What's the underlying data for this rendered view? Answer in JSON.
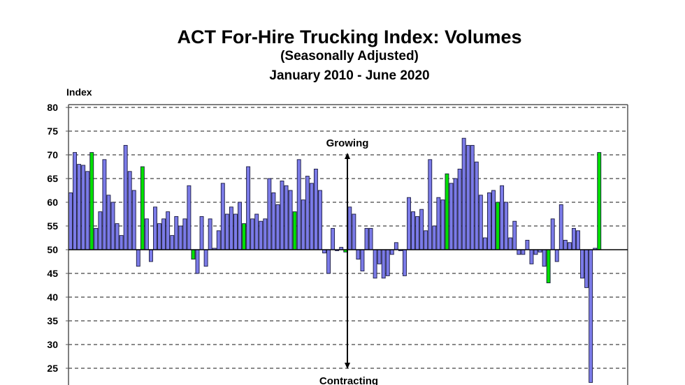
{
  "chart_data": {
    "type": "bar",
    "title": "ACT For-Hire Trucking Index: Volumes",
    "subtitle": "(Seasonally Adjusted)",
    "period": "January 2010 - June 2020",
    "ylabel": "Index",
    "xlabel": "",
    "ylim": [
      20,
      80
    ],
    "yticks": [
      25,
      30,
      35,
      40,
      45,
      50,
      55,
      60,
      65,
      70,
      75,
      80
    ],
    "baseline": 50,
    "grid": true,
    "annotations": {
      "up": "Growing",
      "down": "Contracting"
    },
    "colors": {
      "bar": "#7b7be8",
      "highlight": "#00e000",
      "outline": "#1a1a40"
    },
    "highlight_note_indices": [
      5,
      17,
      29,
      41,
      53,
      65,
      89,
      101,
      113,
      125
    ],
    "start": "2010-01",
    "end": "2020-06",
    "values": [
      62,
      70.5,
      68,
      67.8,
      66.5,
      70.5,
      54.5,
      58,
      69,
      61.5,
      60,
      55.5,
      53,
      72,
      66.5,
      62.5,
      46.5,
      67.5,
      56.5,
      47.5,
      59,
      55.5,
      56.5,
      58,
      53,
      57,
      55,
      56.5,
      63.5,
      48,
      45,
      57,
      46.5,
      56.5,
      50.3,
      54,
      64,
      57.5,
      59,
      57.5,
      60,
      55.5,
      67.5,
      56.5,
      57.5,
      56,
      56.5,
      65,
      62,
      59.5,
      64.5,
      63.5,
      62.5,
      58,
      69,
      60.5,
      65.5,
      64,
      67,
      62.5,
      49.3,
      45,
      54.5,
      50,
      50.5,
      49.5,
      59,
      57.5,
      48,
      45.5,
      54.5,
      54.5,
      44,
      47,
      44,
      44.5,
      49,
      51.5,
      50,
      44.5,
      61,
      58,
      57,
      58.5,
      54,
      69,
      55,
      61,
      60.5,
      66,
      64,
      65,
      67,
      73.5,
      72,
      72,
      68.5,
      61.5,
      52.5,
      62,
      62.5,
      60,
      63.5,
      60,
      52.5,
      56,
      49,
      49,
      52,
      47,
      49,
      49.5,
      46.5,
      43,
      56.5,
      47.5,
      59.5,
      52,
      51.5,
      54.5,
      54,
      44,
      42,
      22,
      50.3,
      70.5
    ]
  }
}
